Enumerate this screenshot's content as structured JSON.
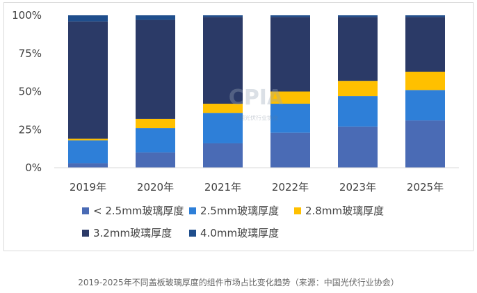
{
  "chart_data": {
    "type": "bar",
    "stacked": true,
    "percent": true,
    "categories": [
      "2019年",
      "2020年",
      "2021年",
      "2022年",
      "2023年",
      "2025年"
    ],
    "series": [
      {
        "name": "< 2.5mm玻璃厚度",
        "color": "#4a6bb5",
        "values": [
          3,
          10,
          16,
          23,
          27,
          31
        ]
      },
      {
        "name": "2.5mm玻璃厚度",
        "color": "#2e7fd8",
        "values": [
          15,
          16,
          20,
          19,
          20,
          20
        ]
      },
      {
        "name": "2.8mm玻璃厚度",
        "color": "#ffc000",
        "values": [
          1,
          6,
          6,
          8,
          10,
          12
        ]
      },
      {
        "name": "3.2mm玻璃厚度",
        "color": "#2b3a67",
        "values": [
          77,
          65,
          57,
          49,
          42,
          36
        ]
      },
      {
        "name": "4.0mm玻璃厚度",
        "color": "#1f4e8c",
        "values": [
          4,
          3,
          1,
          1,
          1,
          1
        ]
      }
    ],
    "yticks": [
      "0%",
      "25%",
      "50%",
      "75%",
      "100%"
    ],
    "ylim": [
      0,
      100
    ],
    "legend_position": "bottom",
    "grid": false
  },
  "watermark": {
    "main": "CPIA",
    "sub": "中国光伏行业协会"
  },
  "caption": "2019-2025年不同盖板玻璃厚度的组件市场占比变化趋势（来源：中国光伏行业协会）"
}
